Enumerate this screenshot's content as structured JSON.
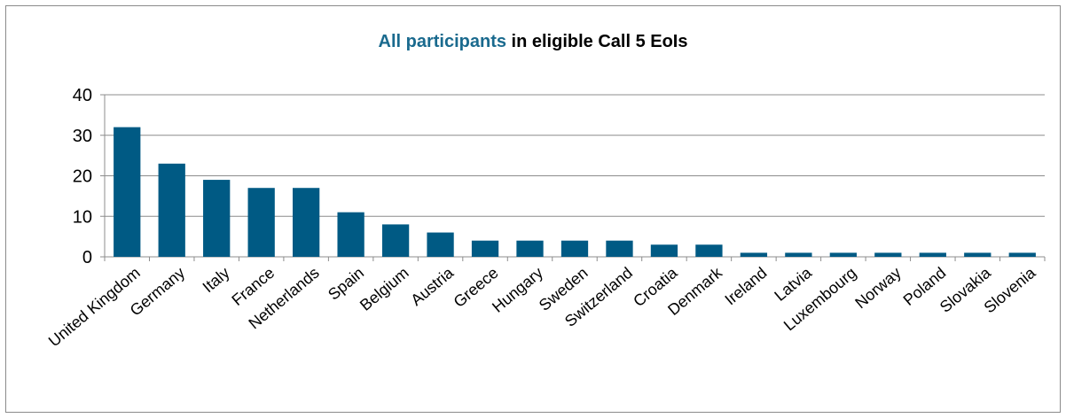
{
  "chart_data": {
    "type": "bar",
    "title": {
      "accent": "All participants",
      "rest": " in eligible Call 5 EoIs"
    },
    "xlabel": "",
    "ylabel": "",
    "categories": [
      "United Kingdom",
      "Germany",
      "Italy",
      "France",
      "Netherlands",
      "Spain",
      "Belgium",
      "Austria",
      "Greece",
      "Hungary",
      "Sweden",
      "Switzerland",
      "Croatia",
      "Denmark",
      "Ireland",
      "Latvia",
      "Luxembourg",
      "Norway",
      "Poland",
      "Slovakia",
      "Slovenia"
    ],
    "values": [
      32,
      23,
      19,
      17,
      17,
      11,
      8,
      6,
      4,
      4,
      4,
      4,
      3,
      3,
      1,
      1,
      1,
      1,
      1,
      1,
      1
    ],
    "ylim": [
      0,
      40
    ],
    "yticks": [
      "0",
      "10",
      "20",
      "30",
      "40"
    ],
    "grid": true,
    "legend": "none",
    "colors": {
      "bar": "#005a84",
      "title_accent": "#1a6a8e",
      "grid": "#8c8c8c",
      "frame": "#8a8a8a"
    }
  }
}
